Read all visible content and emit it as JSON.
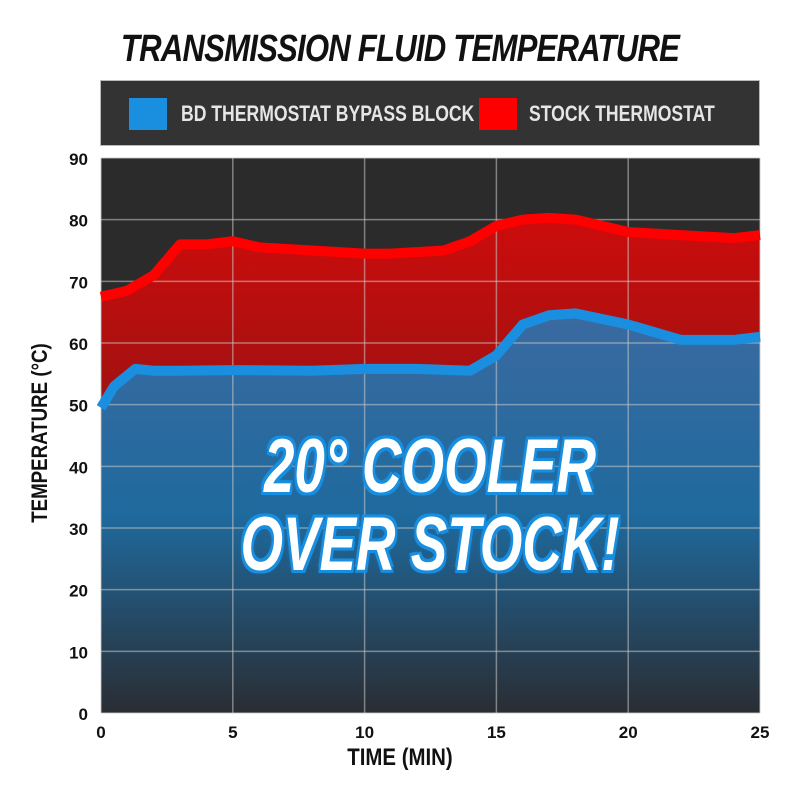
{
  "chart_data": {
    "type": "area",
    "title": "TRANSMISSION FLUID TEMPERATURE",
    "xlabel": "TIME (MIN)",
    "ylabel": "TEMPERATURE (°C)",
    "xlim": [
      0,
      25
    ],
    "ylim": [
      0,
      90
    ],
    "xticks": [
      "0",
      "5",
      "10",
      "15",
      "20",
      "25"
    ],
    "yticks": [
      "0",
      "10",
      "20",
      "30",
      "40",
      "50",
      "60",
      "70",
      "80",
      "90"
    ],
    "grid": true,
    "legend_position": "top",
    "annotation": [
      "20° COOLER",
      "OVER STOCK!"
    ],
    "series": [
      {
        "name": "BD THERMOSTAT BYPASS BLOCK",
        "color": "#1a8fe0",
        "x": [
          0,
          0.5,
          1.3,
          2,
          3,
          5,
          8,
          10,
          12,
          14,
          15,
          16,
          17,
          18,
          20,
          22,
          24,
          25
        ],
        "y": [
          49.5,
          53,
          55.8,
          55.5,
          55.5,
          55.6,
          55.5,
          55.8,
          55.8,
          55.5,
          58,
          63,
          64.5,
          64.8,
          63,
          60.5,
          60.5,
          61
        ]
      },
      {
        "name": "STOCK THERMOSTAT",
        "color": "#ff0000",
        "x": [
          0,
          1,
          2,
          3,
          4,
          5,
          6,
          8,
          10,
          11,
          13,
          14,
          15,
          16,
          17,
          18,
          20,
          22,
          24,
          25
        ],
        "y": [
          67.5,
          68.5,
          71,
          76,
          76,
          76.5,
          75.5,
          75,
          74.5,
          74.5,
          75,
          76.5,
          79,
          80,
          80.3,
          80,
          78,
          77.5,
          77,
          77.5
        ]
      }
    ]
  }
}
